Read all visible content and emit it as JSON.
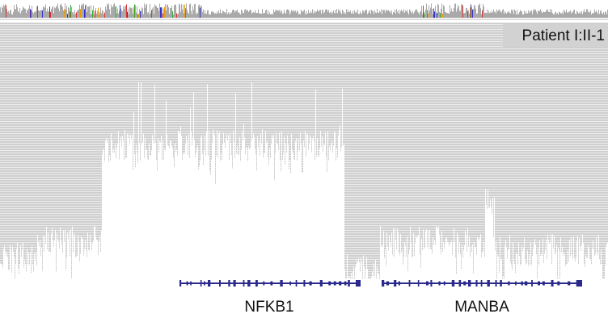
{
  "track": {
    "sample": "Patient I:II-1"
  },
  "genes": [
    {
      "label": "NFKB1"
    },
    {
      "label": "MANBA"
    }
  ]
}
